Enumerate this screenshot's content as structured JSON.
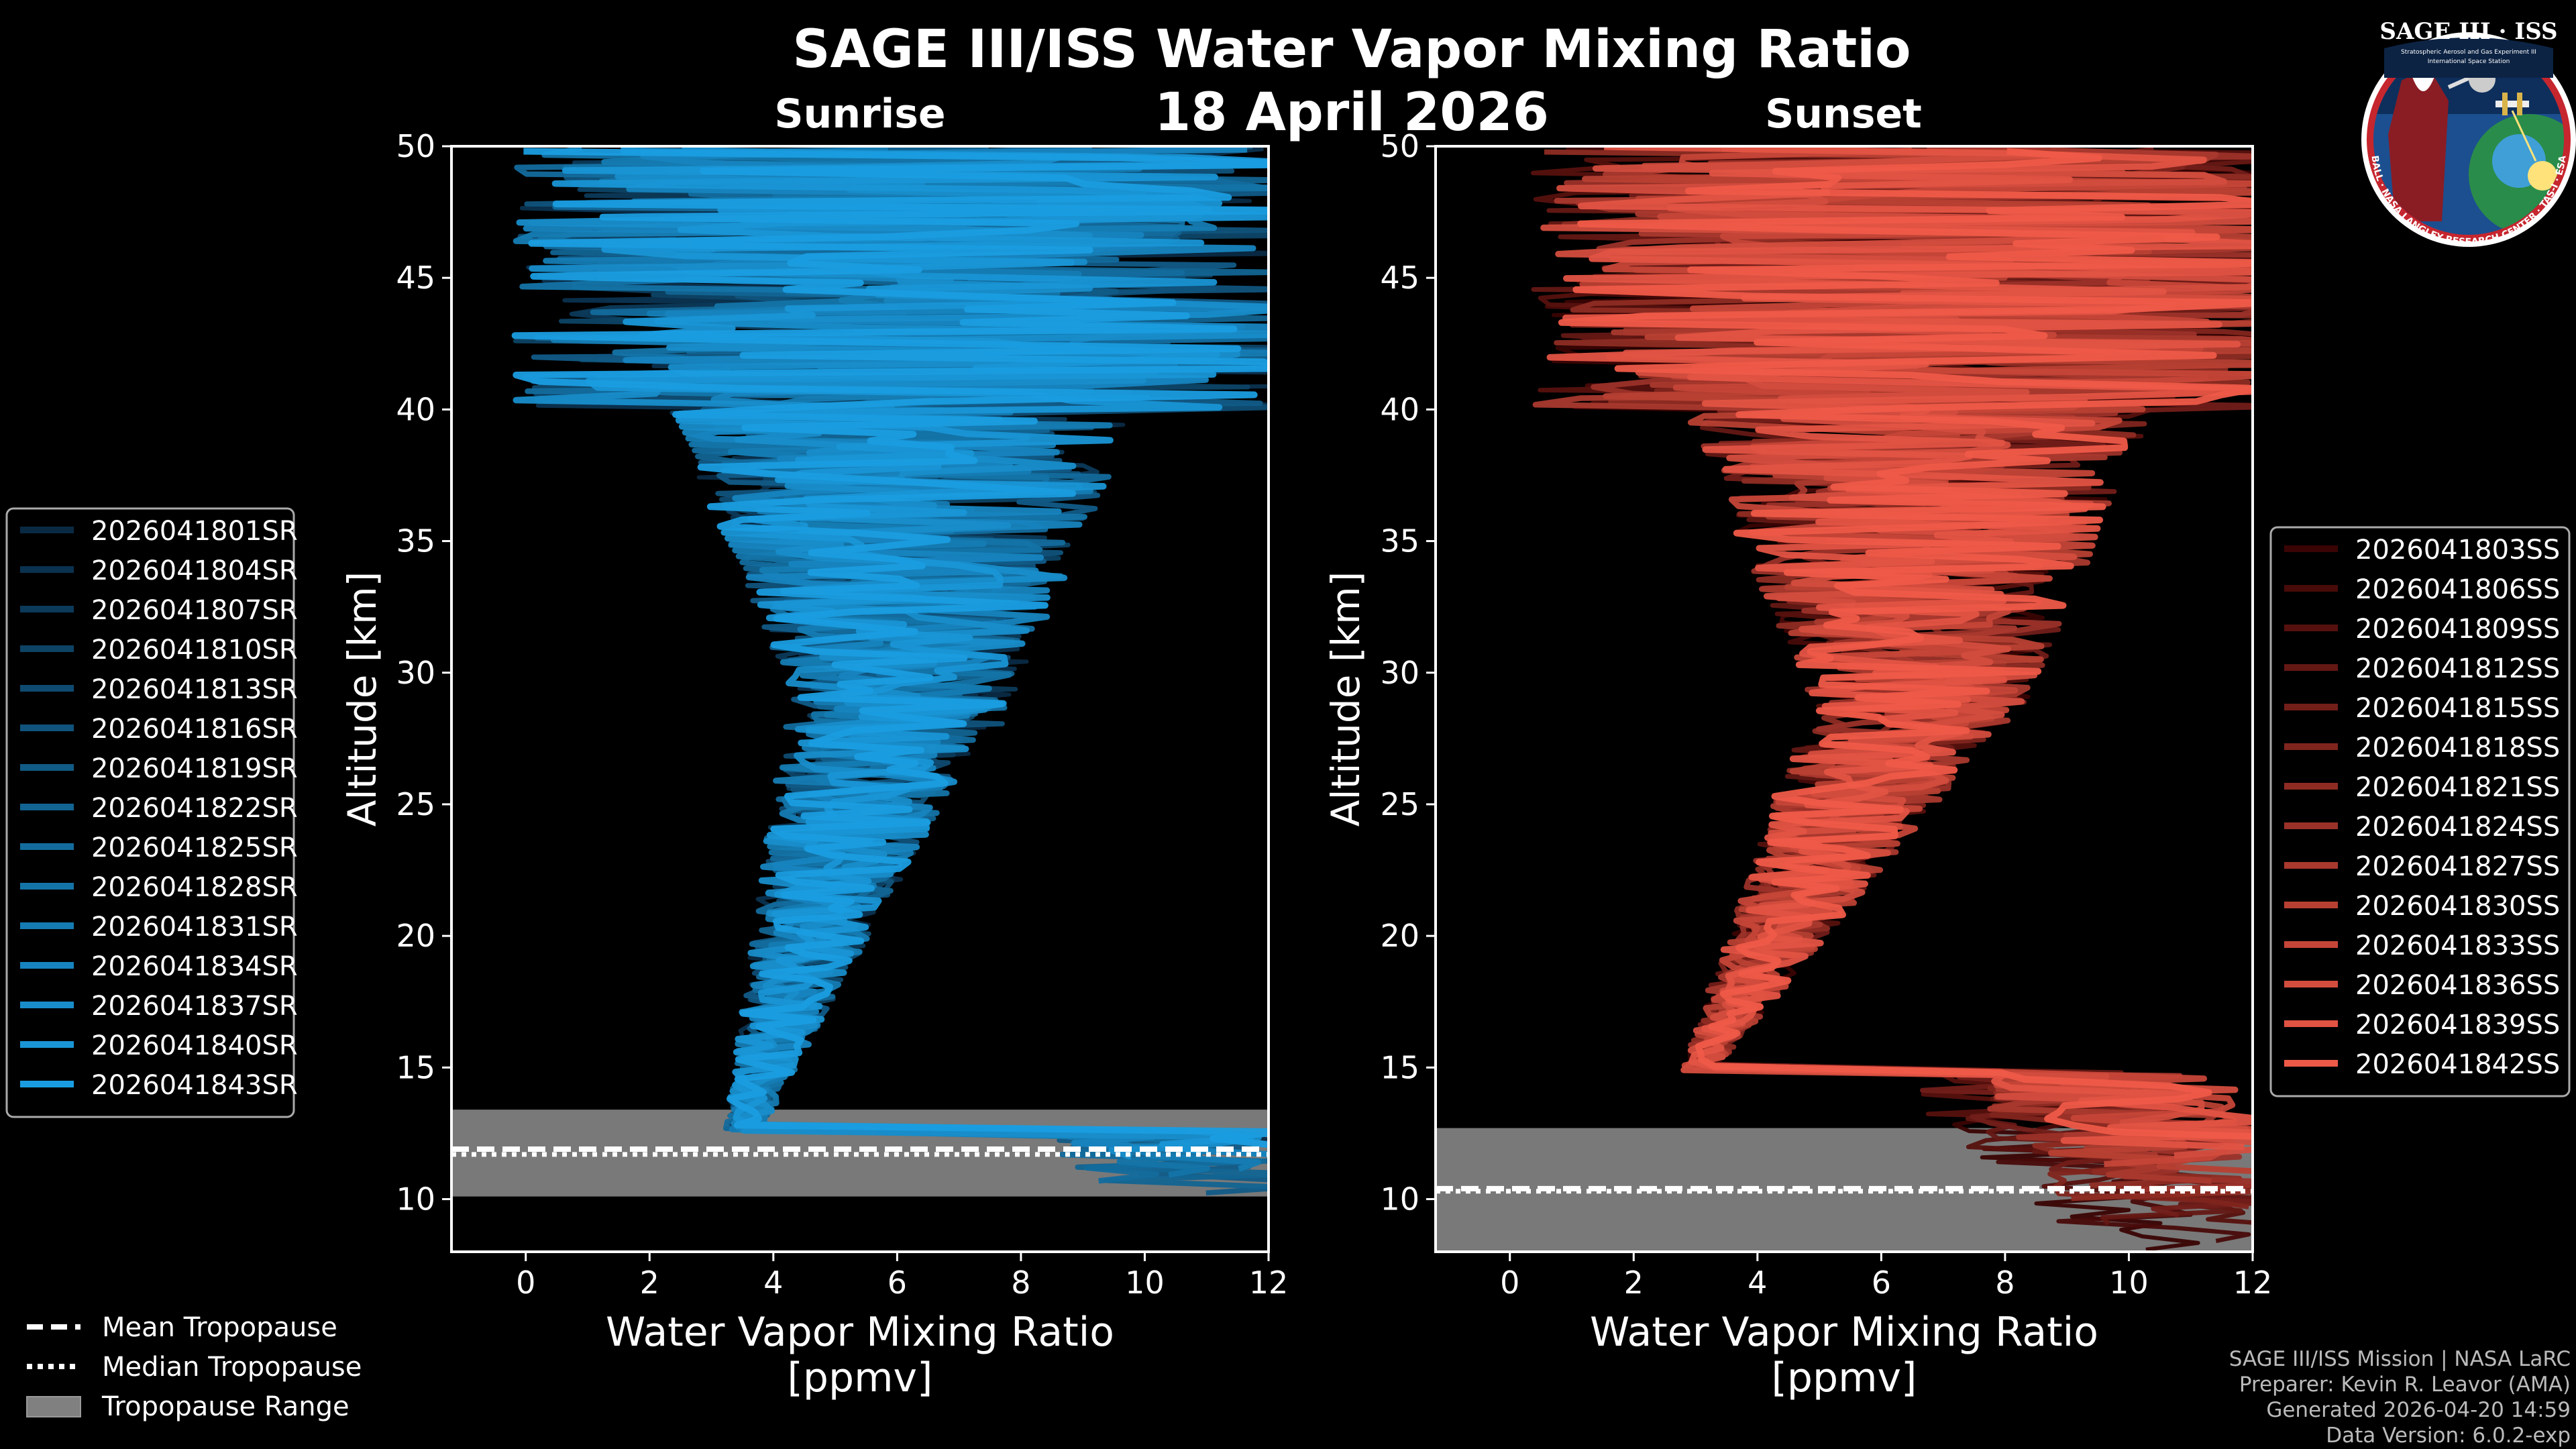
{
  "figure": {
    "title": "SAGE III/ISS Water Vapor Mixing Ratio",
    "date": "18 April 2026",
    "logo": {
      "top_text": "SAGE III · ISS",
      "small_text_1": "Stratospheric Aerosol and Gas Experiment III",
      "small_text_2": "International Space Station",
      "ring_text": "BALL · NASA LANGLEY RESEARCH CENTER · TAS-I · ESA"
    },
    "credits": [
      "SAGE III/ISS Mission | NASA LaRC",
      "Preparer: Kevin R. Leavor (AMA)",
      "Generated 2026-04-20 14:59",
      "Data Version: 6.0.2-exp"
    ],
    "bottom_legend": {
      "mean": "Mean Tropopause",
      "median": "Median Tropopause",
      "range": "Tropopause Range"
    }
  },
  "chart_data": [
    {
      "type": "line",
      "panel": "Sunrise",
      "title": "Sunrise",
      "xlabel": "Water Vapor Mixing Ratio\n[ppmv]",
      "ylabel": "Altitude [km]",
      "xlim": [
        -1.2,
        12
      ],
      "ylim": [
        8,
        50
      ],
      "xticks": [
        0,
        2,
        4,
        6,
        8,
        10,
        12
      ],
      "yticks": [
        10,
        15,
        20,
        25,
        30,
        35,
        40,
        45,
        50
      ],
      "tropopause": {
        "mean": 11.9,
        "median": 11.7,
        "range": [
          10.1,
          13.4
        ]
      },
      "profile_shape": {
        "core_low": 4.3,
        "core_high": 6.8,
        "min_alt": 13.2,
        "min_ppmv": 3.6,
        "stratosphere_ppmv": 5.8
      },
      "color_start": "#0a2a44",
      "color_end": "#1a9de0",
      "series": [
        {
          "name": "2026041801SR"
        },
        {
          "name": "2026041804SR"
        },
        {
          "name": "2026041807SR"
        },
        {
          "name": "2026041810SR"
        },
        {
          "name": "2026041813SR"
        },
        {
          "name": "2026041816SR"
        },
        {
          "name": "2026041819SR"
        },
        {
          "name": "2026041822SR"
        },
        {
          "name": "2026041825SR"
        },
        {
          "name": "2026041828SR"
        },
        {
          "name": "2026041831SR"
        },
        {
          "name": "2026041834SR"
        },
        {
          "name": "2026041837SR"
        },
        {
          "name": "2026041840SR"
        },
        {
          "name": "2026041843SR"
        }
      ]
    },
    {
      "type": "line",
      "panel": "Sunset",
      "title": "Sunset",
      "xlabel": "Water Vapor Mixing Ratio\n[ppmv]",
      "ylabel": "Altitude [km]",
      "xlim": [
        -1.2,
        12
      ],
      "ylim": [
        8,
        50
      ],
      "xticks": [
        0,
        2,
        4,
        6,
        8,
        10,
        12
      ],
      "yticks": [
        10,
        15,
        20,
        25,
        30,
        35,
        40,
        45,
        50
      ],
      "tropopause": {
        "mean": 10.4,
        "median": 10.3,
        "range": [
          8.0,
          12.7
        ]
      },
      "profile_shape": {
        "core_low": 4.5,
        "core_high": 7.0,
        "min_alt": 15.5,
        "min_ppmv": 3.2,
        "stratosphere_ppmv": 6.3
      },
      "color_start": "#3a0404",
      "color_end": "#ef5a48",
      "series": [
        {
          "name": "2026041803SS"
        },
        {
          "name": "2026041806SS"
        },
        {
          "name": "2026041809SS"
        },
        {
          "name": "2026041812SS"
        },
        {
          "name": "2026041815SS"
        },
        {
          "name": "2026041818SS"
        },
        {
          "name": "2026041821SS"
        },
        {
          "name": "2026041824SS"
        },
        {
          "name": "2026041827SS"
        },
        {
          "name": "2026041830SS"
        },
        {
          "name": "2026041833SS"
        },
        {
          "name": "2026041836SS"
        },
        {
          "name": "2026041839SS"
        },
        {
          "name": "2026041842SS"
        }
      ]
    }
  ]
}
